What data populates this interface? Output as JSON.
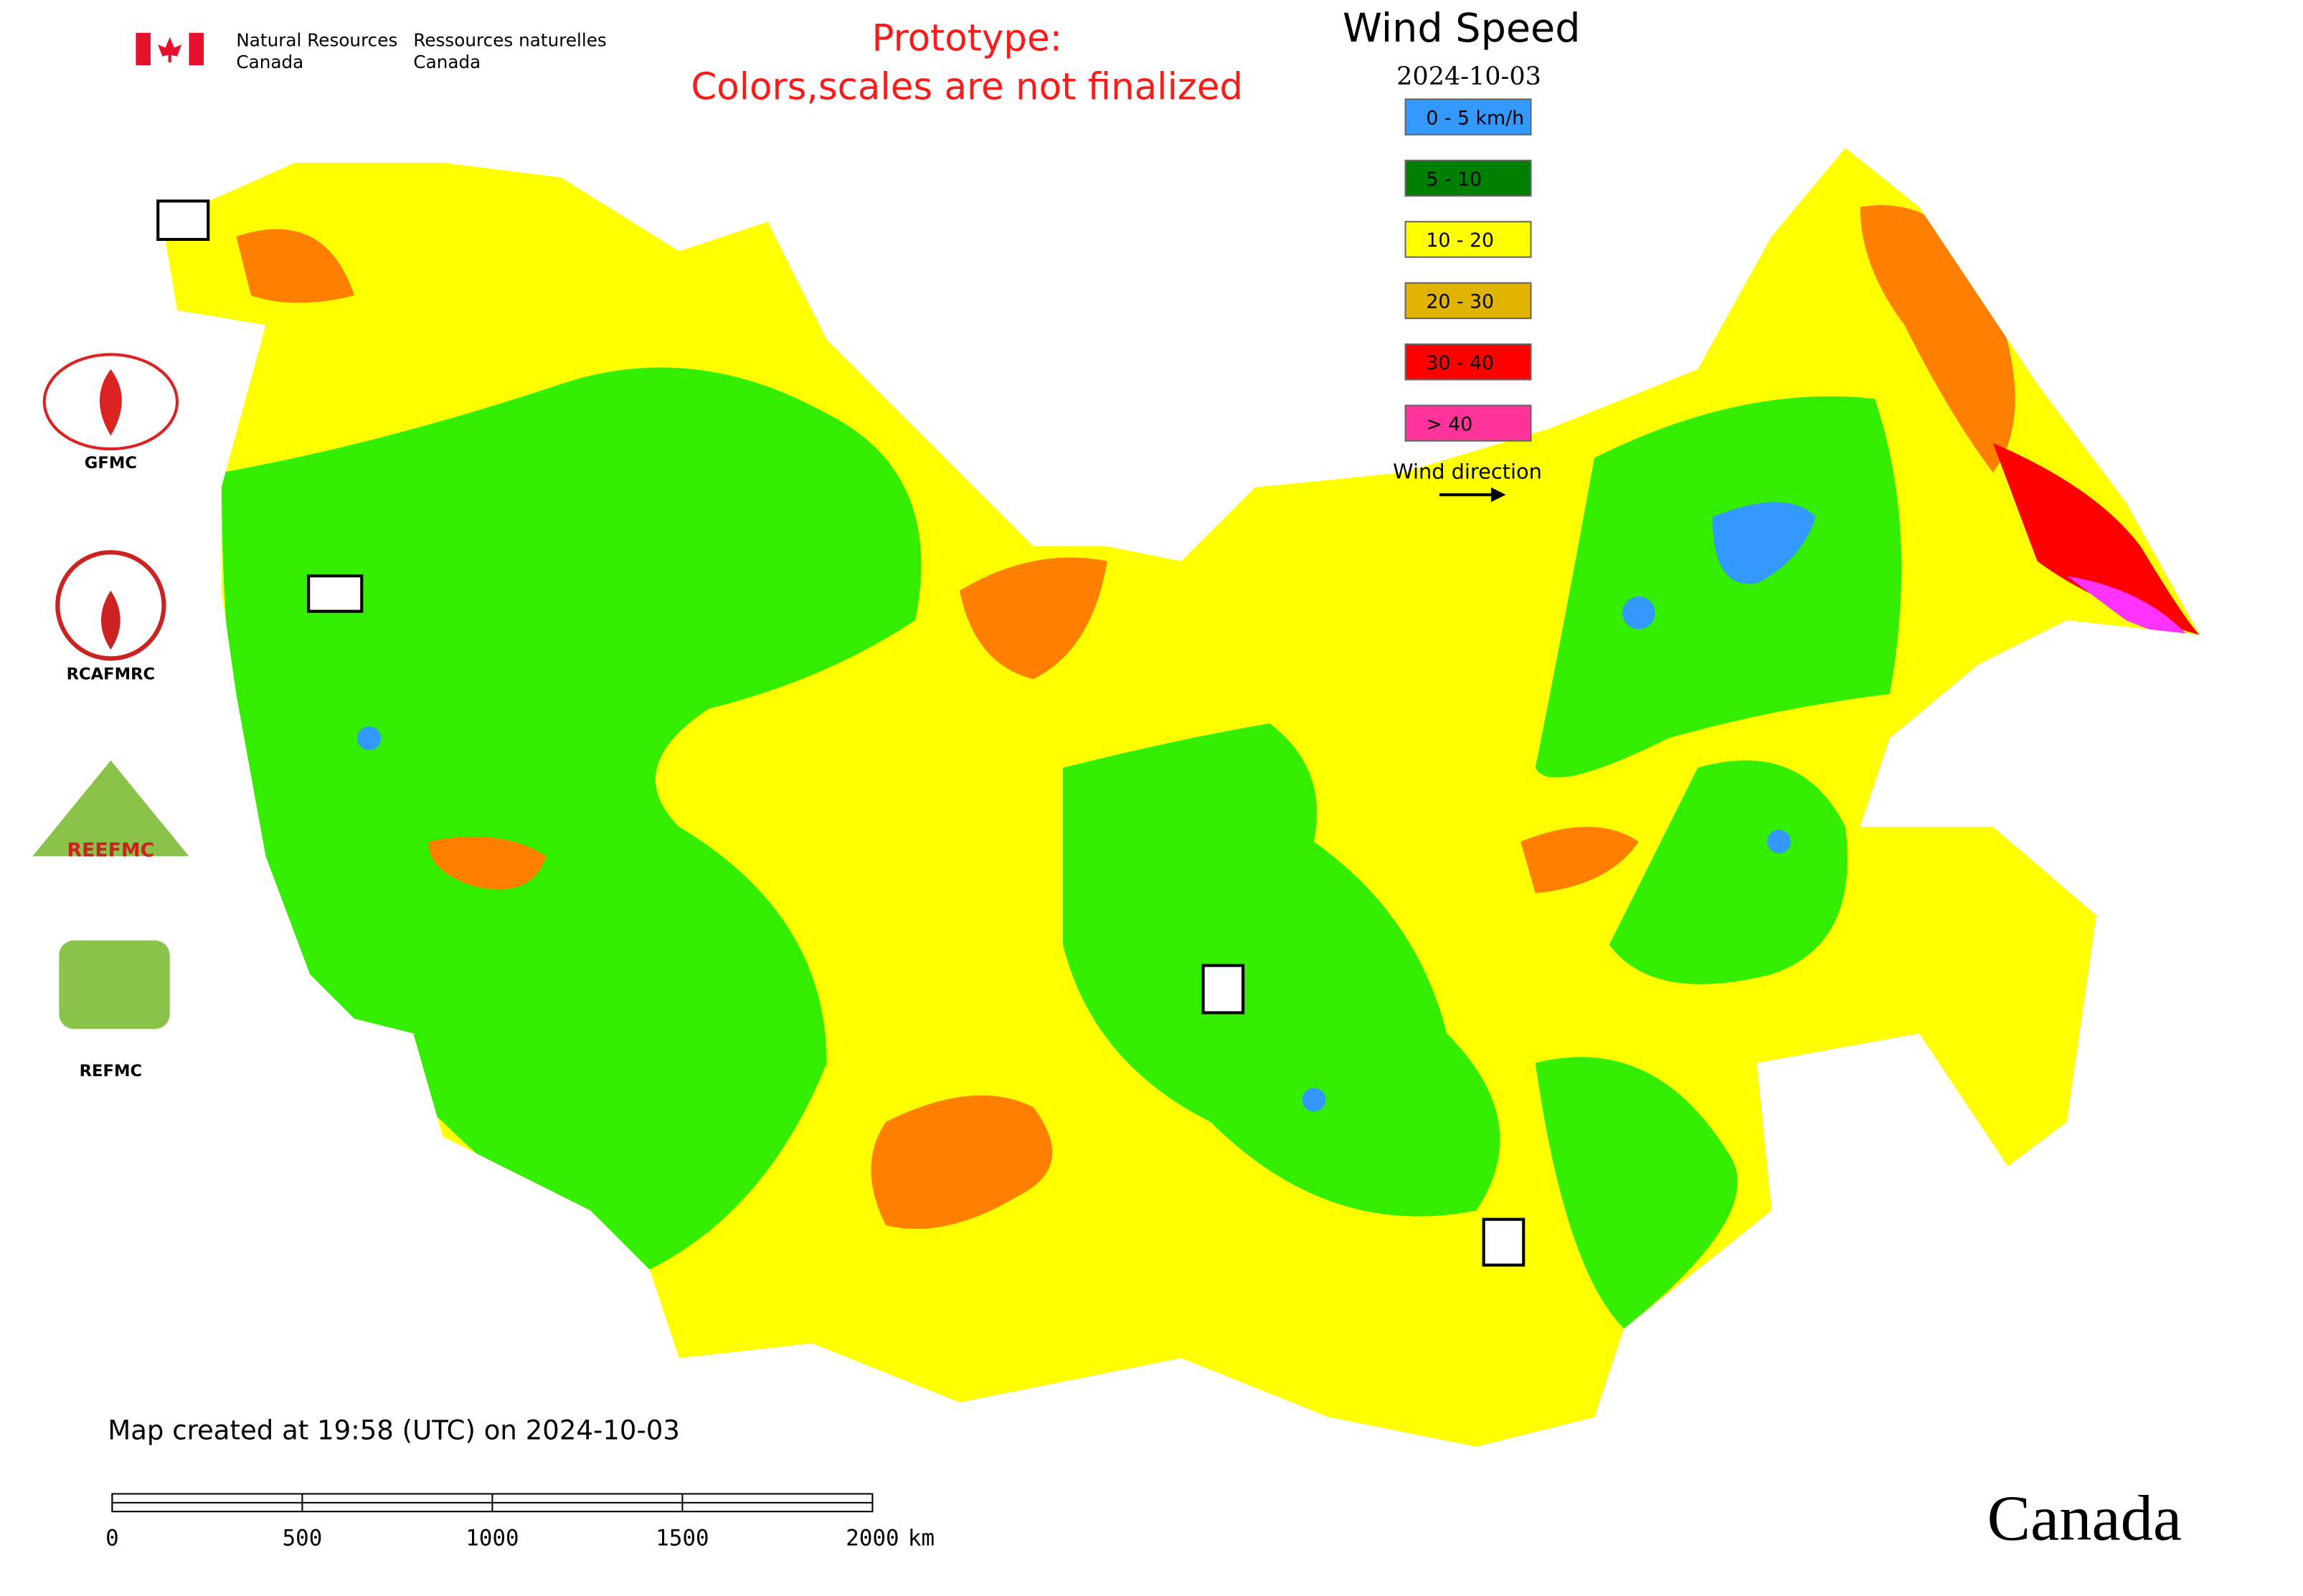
{
  "header": {
    "agency_en": [
      "Natural Resources",
      "Canada"
    ],
    "agency_fr": [
      "Ressources naturelles",
      "Canada"
    ],
    "note": [
      "Prototype:",
      "Colors,scales are not finalized"
    ]
  },
  "legend": {
    "title": "Wind Speed",
    "date": "2024-10-03",
    "items": [
      {
        "label": "0 - 5 km/h",
        "color": "#3399ff"
      },
      {
        "label": "5 - 10",
        "color": "#008000"
      },
      {
        "label": "10 - 20",
        "color": "#ffff00"
      },
      {
        "label": "20 - 30",
        "color": "#e0b400"
      },
      {
        "label": "30 - 40",
        "color": "#ff0000"
      },
      {
        "label": "> 40",
        "color": "#ff3399"
      }
    ],
    "direction_label": "Wind direction"
  },
  "logos": [
    "GFMC",
    "RCAFMRC",
    "REEFMC",
    "REFMC"
  ],
  "footer": {
    "created": "Map created at 19:58 (UTC) on 2024-10-03",
    "wordmark": "Canada"
  },
  "scale_bar": {
    "ticks": [
      0,
      500,
      1000,
      1500,
      2000
    ],
    "unit": "km"
  }
}
